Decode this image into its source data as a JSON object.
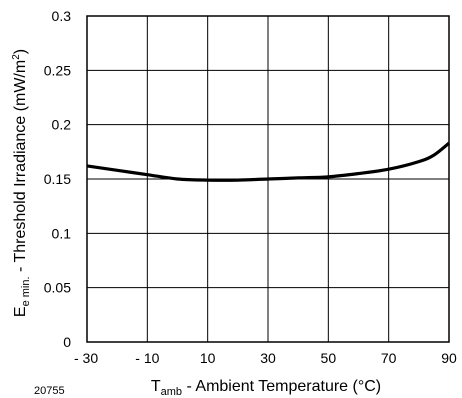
{
  "figure_id": "20755",
  "chart_data": {
    "type": "line",
    "xlabel": {
      "main": "T",
      "sub": "amb",
      "rest": " - Ambient Temperature (°C)"
    },
    "ylabel": {
      "main": "E",
      "sub": "e min.",
      "rest": " - Threshold Irradiance (mW/m",
      "sup": "2",
      "end": ")"
    },
    "xlim": [
      -30,
      90
    ],
    "ylim": [
      0,
      0.3
    ],
    "x_ticks": [
      -30,
      -10,
      10,
      30,
      50,
      70,
      90
    ],
    "x_tick_labels": [
      "- 30",
      "- 10",
      "10",
      "30",
      "50",
      "70",
      "90"
    ],
    "y_ticks": [
      0,
      0.05,
      0.1,
      0.15,
      0.2,
      0.25,
      0.3
    ],
    "y_tick_labels": [
      "0",
      "0.05",
      "0.1",
      "0.15",
      "0.2",
      "0.25",
      "0.3"
    ],
    "grid": true,
    "series": [
      {
        "x": [
          -30,
          -20,
          -10,
          0,
          10,
          20,
          30,
          40,
          50,
          60,
          70,
          80,
          85,
          90
        ],
        "y": [
          0.162,
          0.158,
          0.154,
          0.15,
          0.149,
          0.149,
          0.15,
          0.151,
          0.152,
          0.155,
          0.159,
          0.166,
          0.172,
          0.183
        ]
      }
    ]
  }
}
